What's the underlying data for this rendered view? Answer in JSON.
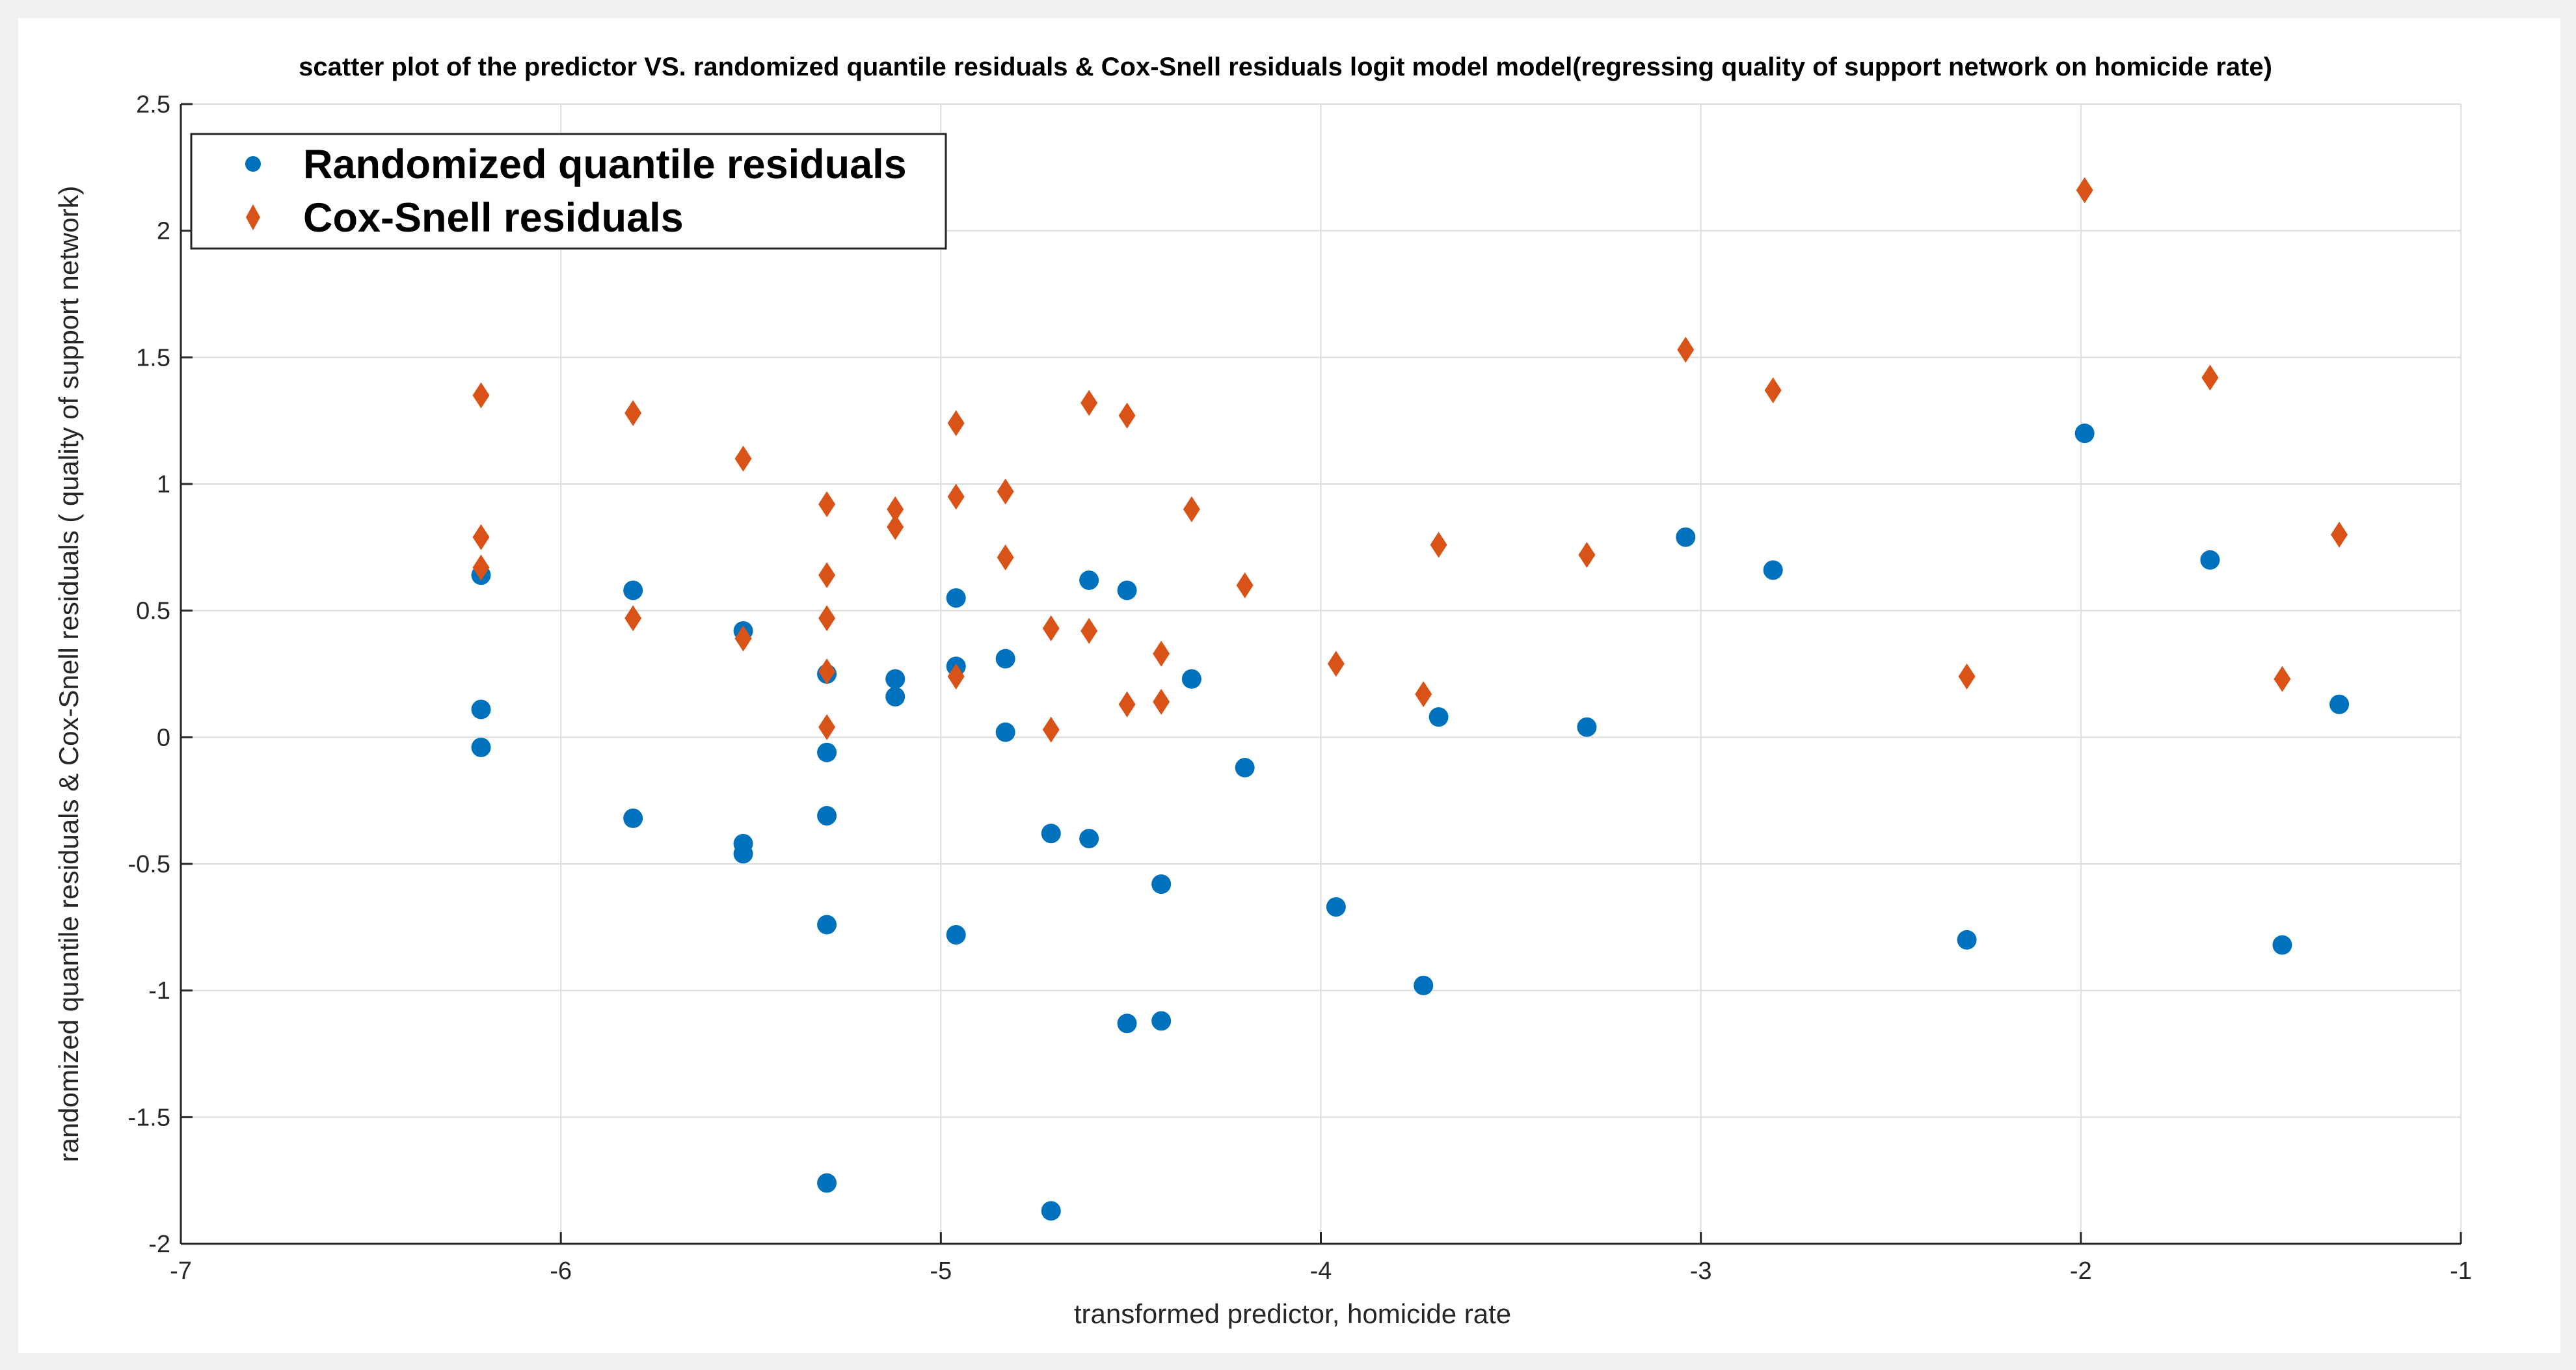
{
  "chart_data": {
    "type": "scatter",
    "title": "scatter plot of the predictor VS. randomized quantile residuals & Cox-Snell residuals logit model model(regressing quality of support network on homicide rate)",
    "xlabel": "transformed predictor, homicide rate",
    "ylabel": "randomized quantile residuals & Cox-Snell residuals ( quality of support network)",
    "xlim": [
      -7,
      -1
    ],
    "ylim": [
      -2,
      2.5
    ],
    "xticks": [
      -7,
      -6,
      -5,
      -4,
      -3,
      -2,
      -1
    ],
    "yticks": [
      -2,
      -1.5,
      -1,
      -0.5,
      0,
      0.5,
      1,
      1.5,
      2,
      2.5
    ],
    "grid": true,
    "legend_position": "top-left",
    "colors": {
      "rqr": "#0072BD",
      "cs": "#D95319",
      "axes": "#262626",
      "grid": "#dcdcdc"
    },
    "series": [
      {
        "name": "Randomized quantile residuals",
        "marker": "circle",
        "points": [
          {
            "x": -6.21,
            "y": 0.64
          },
          {
            "x": -6.21,
            "y": 0.11
          },
          {
            "x": -6.21,
            "y": -0.04
          },
          {
            "x": -5.81,
            "y": 0.58
          },
          {
            "x": -5.81,
            "y": -0.32
          },
          {
            "x": -5.52,
            "y": 0.42
          },
          {
            "x": -5.52,
            "y": -0.42
          },
          {
            "x": -5.52,
            "y": -0.46
          },
          {
            "x": -5.3,
            "y": 0.25
          },
          {
            "x": -5.3,
            "y": -0.06
          },
          {
            "x": -5.3,
            "y": -0.31
          },
          {
            "x": -5.3,
            "y": -0.74
          },
          {
            "x": -5.3,
            "y": -1.76
          },
          {
            "x": -5.12,
            "y": 0.23
          },
          {
            "x": -5.12,
            "y": 0.16
          },
          {
            "x": -4.96,
            "y": 0.55
          },
          {
            "x": -4.96,
            "y": 0.28
          },
          {
            "x": -4.96,
            "y": -0.78
          },
          {
            "x": -4.83,
            "y": 0.31
          },
          {
            "x": -4.83,
            "y": 0.02
          },
          {
            "x": -4.71,
            "y": -0.38
          },
          {
            "x": -4.71,
            "y": -1.87
          },
          {
            "x": -4.61,
            "y": 0.62
          },
          {
            "x": -4.61,
            "y": -0.4
          },
          {
            "x": -4.51,
            "y": 0.58
          },
          {
            "x": -4.51,
            "y": -1.13
          },
          {
            "x": -4.42,
            "y": -0.58
          },
          {
            "x": -4.42,
            "y": -1.12
          },
          {
            "x": -4.34,
            "y": 0.23
          },
          {
            "x": -4.2,
            "y": -0.12
          },
          {
            "x": -3.96,
            "y": -0.67
          },
          {
            "x": -3.73,
            "y": -0.98
          },
          {
            "x": -3.69,
            "y": 0.08
          },
          {
            "x": -3.3,
            "y": 0.04
          },
          {
            "x": -3.04,
            "y": 0.79
          },
          {
            "x": -2.81,
            "y": 0.66
          },
          {
            "x": -2.3,
            "y": -0.8
          },
          {
            "x": -1.99,
            "y": 1.2
          },
          {
            "x": -1.66,
            "y": 0.7
          },
          {
            "x": -1.47,
            "y": -0.82
          },
          {
            "x": -1.32,
            "y": 0.13
          }
        ]
      },
      {
        "name": "Cox-Snell residuals",
        "marker": "diamond",
        "points": [
          {
            "x": -6.21,
            "y": 1.35
          },
          {
            "x": -6.21,
            "y": 0.79
          },
          {
            "x": -6.21,
            "y": 0.67
          },
          {
            "x": -5.81,
            "y": 1.28
          },
          {
            "x": -5.81,
            "y": 0.47
          },
          {
            "x": -5.52,
            "y": 1.1
          },
          {
            "x": -5.52,
            "y": 0.39
          },
          {
            "x": -5.3,
            "y": 0.92
          },
          {
            "x": -5.3,
            "y": 0.64
          },
          {
            "x": -5.3,
            "y": 0.47
          },
          {
            "x": -5.3,
            "y": 0.26
          },
          {
            "x": -5.3,
            "y": 0.04
          },
          {
            "x": -5.12,
            "y": 0.9
          },
          {
            "x": -5.12,
            "y": 0.83
          },
          {
            "x": -4.96,
            "y": 1.24
          },
          {
            "x": -4.96,
            "y": 0.95
          },
          {
            "x": -4.96,
            "y": 0.24
          },
          {
            "x": -4.83,
            "y": 0.97
          },
          {
            "x": -4.83,
            "y": 0.71
          },
          {
            "x": -4.71,
            "y": 0.43
          },
          {
            "x": -4.71,
            "y": 0.03
          },
          {
            "x": -4.61,
            "y": 1.32
          },
          {
            "x": -4.61,
            "y": 0.42
          },
          {
            "x": -4.51,
            "y": 1.27
          },
          {
            "x": -4.51,
            "y": 0.13
          },
          {
            "x": -4.42,
            "y": 0.33
          },
          {
            "x": -4.42,
            "y": 0.14
          },
          {
            "x": -4.34,
            "y": 0.9
          },
          {
            "x": -4.2,
            "y": 0.6
          },
          {
            "x": -3.96,
            "y": 0.29
          },
          {
            "x": -3.73,
            "y": 0.17
          },
          {
            "x": -3.69,
            "y": 0.76
          },
          {
            "x": -3.3,
            "y": 0.72
          },
          {
            "x": -3.04,
            "y": 1.53
          },
          {
            "x": -2.81,
            "y": 1.37
          },
          {
            "x": -2.3,
            "y": 0.24
          },
          {
            "x": -1.99,
            "y": 2.16
          },
          {
            "x": -1.66,
            "y": 1.42
          },
          {
            "x": -1.47,
            "y": 0.23
          },
          {
            "x": -1.32,
            "y": 0.8
          }
        ]
      }
    ]
  }
}
